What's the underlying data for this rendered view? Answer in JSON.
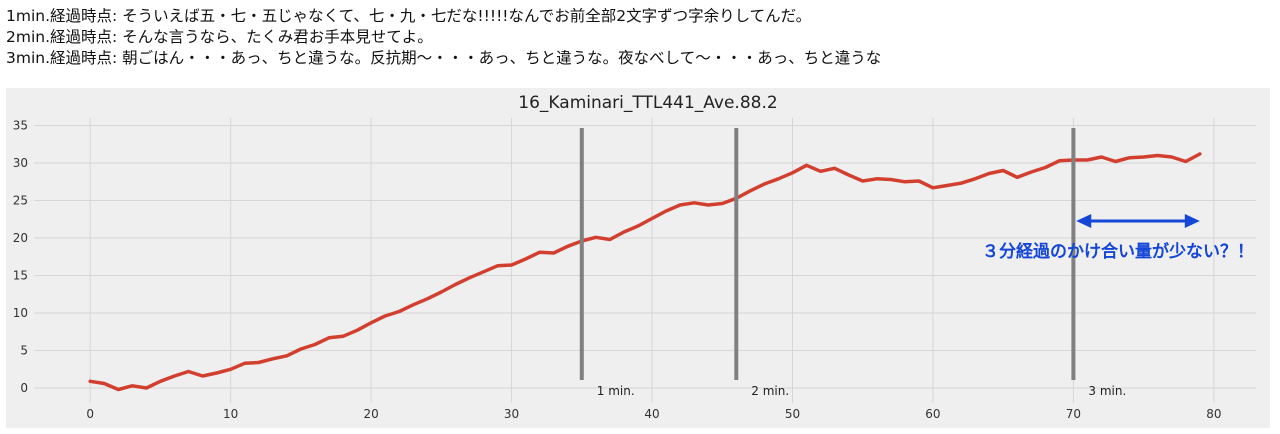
{
  "notes": [
    "1min.経過時点: そういえば五・七・五じゃなくて、七・九・七だな!!!!!なんでお前全部2文字ずつ字余りしてんだ。",
    "2min.経過時点: そんな言うなら、たくみ君お手本見せてよ。",
    "3min.経過時点: 朝ごはん・・・あっ、ちと違うな。反抗期〜・・・あっ、ちと違うな。夜なべして〜・・・あっ、ちと違うな"
  ],
  "colors": {
    "line": "#d23f2f",
    "marker": "#808080",
    "annotation": "#1446d8",
    "background": "#efefef",
    "grid": "#d6d6d6"
  },
  "chart_data": {
    "type": "line",
    "title": "16_Kaminari_TTL441_Ave.88.2",
    "xlabel": "",
    "ylabel": "",
    "xlim": [
      -4,
      83
    ],
    "ylim": [
      -2,
      36
    ],
    "grid": true,
    "xticks": [
      0,
      10,
      20,
      30,
      40,
      50,
      60,
      70,
      80
    ],
    "yticks": [
      0,
      5,
      10,
      15,
      20,
      25,
      30,
      35
    ],
    "series": [
      {
        "x": [
          0,
          1,
          2,
          3,
          4,
          5,
          6,
          7,
          8,
          9,
          10,
          11,
          12,
          13,
          14,
          15,
          16,
          17,
          18,
          19,
          20,
          21,
          22,
          23,
          24,
          25,
          26,
          27,
          28,
          29,
          30,
          31,
          32,
          33,
          34,
          35,
          36,
          37,
          38,
          39,
          40,
          41,
          42,
          43,
          44,
          45,
          46,
          47,
          48,
          49,
          50,
          51,
          52,
          53,
          54,
          55,
          56,
          57,
          58,
          59,
          60,
          61,
          62,
          63,
          64,
          65,
          66,
          67,
          68,
          69,
          70,
          71,
          72,
          73,
          74,
          75,
          76,
          77,
          78,
          79
        ],
        "values": [
          0.9,
          0.6,
          -0.2,
          0.3,
          0.0,
          0.9,
          1.6,
          2.2,
          1.6,
          2.0,
          2.5,
          3.3,
          3.4,
          3.9,
          4.3,
          5.2,
          5.8,
          6.7,
          6.9,
          7.7,
          8.7,
          9.6,
          10.2,
          11.1,
          11.9,
          12.8,
          13.8,
          14.7,
          15.5,
          16.3,
          16.4,
          17.2,
          18.1,
          18.0,
          18.9,
          19.6,
          20.1,
          19.8,
          20.8,
          21.6,
          22.6,
          23.6,
          24.4,
          24.7,
          24.4,
          24.6,
          25.3,
          26.3,
          27.2,
          27.9,
          28.7,
          29.7,
          28.9,
          29.3,
          28.4,
          27.6,
          27.9,
          27.8,
          27.5,
          27.6,
          26.7,
          27.0,
          27.3,
          27.9,
          28.6,
          29.0,
          28.1,
          28.8,
          29.4,
          30.3,
          30.4,
          30.4,
          30.8,
          30.2,
          30.7,
          30.8,
          31.0,
          30.8,
          30.2,
          31.2
        ]
      }
    ],
    "vlines": [
      {
        "x": 35,
        "label": "1 min."
      },
      {
        "x": 46,
        "label": "2 min."
      },
      {
        "x": 70,
        "label": "3 min."
      }
    ],
    "annotation": {
      "text": "３分経過のかけ合い量が少ない？！",
      "arrow_x": [
        70.2,
        79
      ]
    }
  }
}
